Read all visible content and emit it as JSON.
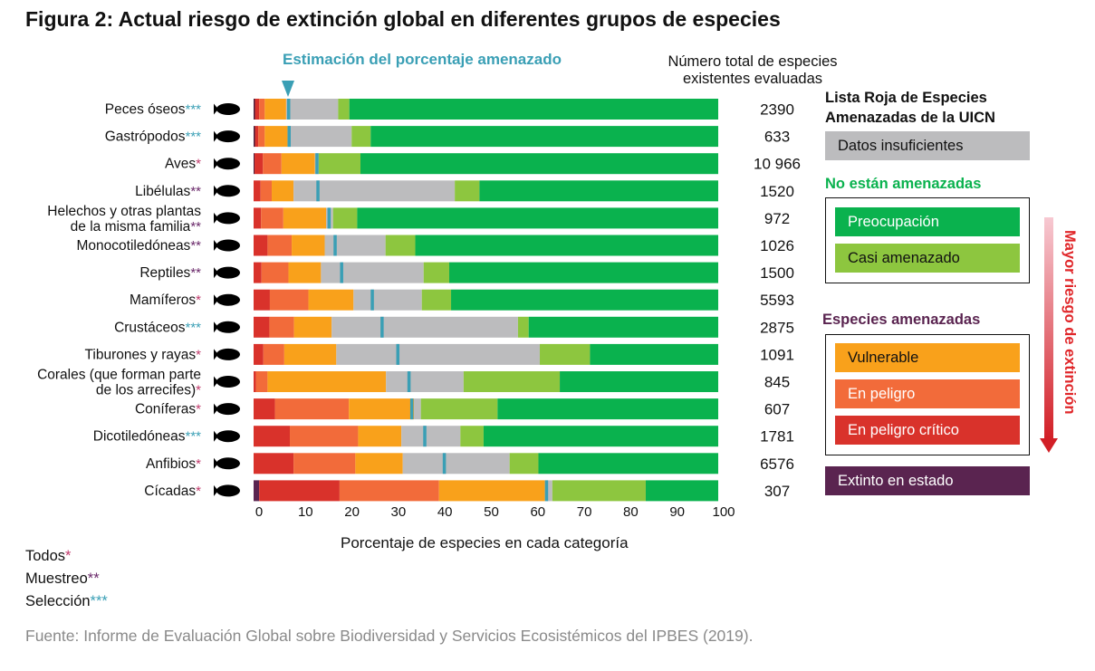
{
  "title": "Figura 2: Actual riesgo de extinción global en diferentes grupos de especies",
  "estimate_label": "Estimación del porcentaje amenazado",
  "total_header": "Número total de especies existentes evaluadas",
  "xlabel": "Porcentaje de especies en cada categoría",
  "notes": [
    {
      "label": "Todos",
      "star": "*"
    },
    {
      "label": "Muestreo",
      "star": "**"
    },
    {
      "label": "Selección",
      "star": "***"
    }
  ],
  "source": "Fuente: Informe de Evaluación Global sobre Biodiversidad y Servicios Ecosistémicos del IPBES (2019).",
  "legend": {
    "title": "Lista Roja de Especies Amenazadas de la UICN",
    "dd": "Datos insuficientes",
    "not_threatened_title": "No están amenazadas",
    "lc": "Preocupación",
    "nt": "Casi amenazado",
    "threatened_title": "Especies amenazadas",
    "vu": "Vulnerable",
    "en": "En peligro",
    "cr": "En peligro crítico",
    "ew": "Extinto en estado",
    "risk": "Mayor riesgo de extinción"
  },
  "colors": {
    "EX": "#4a1e3d",
    "EW": "#5a2450",
    "CR": "#d9322b",
    "EN": "#f26b3a",
    "VU": "#f9a11b",
    "DD": "#bcbcbe",
    "NT": "#8dc63f",
    "LC": "#0ab24e",
    "marker": "#3a9fb5",
    "star_all": "#c0396b",
    "star_sample": "#6b2a6b",
    "star_select": "#3a9fb5"
  },
  "chart_data": {
    "type": "bar",
    "orientation": "horizontal",
    "stacked": true,
    "xlim": [
      0,
      100
    ],
    "xticks": [
      "0",
      "10",
      "20",
      "30",
      "40",
      "50",
      "60",
      "70",
      "80",
      "90",
      "100"
    ],
    "segment_order": [
      "EX",
      "EW",
      "CR",
      "EN",
      "VU",
      "DD",
      "NT",
      "LC"
    ],
    "categories": [
      {
        "label": [
          "Peces óseos"
        ],
        "star": "***",
        "total": "2390",
        "EX": 0.3,
        "EW": 0,
        "CR": 0.9,
        "EN": 1.2,
        "VU": 4.6,
        "DD": 11.2,
        "NT": 2.4,
        "LC": 79.4,
        "estimate": 7.5
      },
      {
        "label": [
          "Gastrópodos"
        ],
        "star": "***",
        "total": "633",
        "EX": 0.3,
        "EW": 0,
        "CR": 0.7,
        "EN": 1.4,
        "VU": 4.9,
        "DD": 13.8,
        "NT": 4.1,
        "LC": 74.8,
        "estimate": 7.6
      },
      {
        "label": [
          "Aves"
        ],
        "star": "*",
        "total": "10 966",
        "EX": 0.2,
        "EW": 0,
        "CR": 1.8,
        "EN": 4.0,
        "VU": 7.2,
        "DD": 0.8,
        "NT": 9.0,
        "LC": 77.0,
        "estimate": 13.6
      },
      {
        "label": [
          "Libélulas"
        ],
        "star": "**",
        "total": "1520",
        "EX": 0,
        "EW": 0,
        "CR": 1.5,
        "EN": 2.4,
        "VU": 4.7,
        "DD": 34.7,
        "NT": 5.3,
        "LC": 51.4,
        "estimate": 13.8
      },
      {
        "label": [
          "Helechos y otras plantas",
          "de la misma familia"
        ],
        "star": "**",
        "total": "972",
        "EX": 0,
        "EW": 0,
        "CR": 1.6,
        "EN": 4.8,
        "VU": 9.2,
        "DD": 1.5,
        "NT": 5.2,
        "LC": 77.7,
        "estimate": 16.2
      },
      {
        "label": [
          "Monocotiledóneas"
        ],
        "star": "**",
        "total": "1026",
        "EX": 0,
        "EW": 0,
        "CR": 3.0,
        "EN": 5.2,
        "VU": 7.1,
        "DD": 13.1,
        "NT": 6.4,
        "LC": 65.2,
        "estimate": 17.5
      },
      {
        "label": [
          "Reptiles"
        ],
        "star": "**",
        "total": "1500",
        "EX": 0,
        "EW": 0,
        "CR": 1.7,
        "EN": 5.8,
        "VU": 7.0,
        "DD": 22.1,
        "NT": 5.5,
        "LC": 57.9,
        "estimate": 18.9
      },
      {
        "label": [
          "Mamíferos"
        ],
        "star": "*",
        "total": "5593",
        "EX": 0,
        "EW": 0,
        "CR": 3.5,
        "EN": 8.3,
        "VU": 9.7,
        "DD": 14.7,
        "NT": 6.3,
        "LC": 57.5,
        "estimate": 25.5
      },
      {
        "label": [
          "Crustáceos"
        ],
        "star": "***",
        "total": "2875",
        "EX": 0,
        "EW": 0,
        "CR": 3.4,
        "EN": 5.3,
        "VU": 8.1,
        "DD": 40.1,
        "NT": 2.3,
        "LC": 40.8,
        "estimate": 27.6
      },
      {
        "label": [
          "Tiburones y rayas"
        ],
        "star": "*",
        "total": "1091",
        "EX": 0,
        "EW": 0,
        "CR": 2.1,
        "EN": 4.5,
        "VU": 11.2,
        "DD": 43.8,
        "NT": 10.8,
        "LC": 27.6,
        "estimate": 31.0
      },
      {
        "label": [
          "Corales (que forman parte",
          "de los arrecifes)"
        ],
        "star": "*",
        "total": "845",
        "EX": 0,
        "EW": 0,
        "CR": 0.5,
        "EN": 2.5,
        "VU": 25.5,
        "DD": 16.7,
        "NT": 20.7,
        "LC": 34.1,
        "estimate": 33.4
      },
      {
        "label": [
          "Coníferas"
        ],
        "star": "*",
        "total": "607",
        "EX": 0,
        "EW": 0,
        "CR": 4.6,
        "EN": 15.9,
        "VU": 14.0,
        "DD": 1.5,
        "NT": 16.5,
        "LC": 47.5,
        "estimate": 34.0
      },
      {
        "label": [
          "Dicotiledóneas"
        ],
        "star": "***",
        "total": "1781",
        "EX": 0,
        "EW": 0,
        "CR": 7.8,
        "EN": 14.7,
        "VU": 9.3,
        "DD": 12.7,
        "NT": 5.0,
        "LC": 50.5,
        "estimate": 36.8
      },
      {
        "label": [
          "Anfibios"
        ],
        "star": "*",
        "total": "6576",
        "EX": 0,
        "EW": 0,
        "CR": 8.6,
        "EN": 13.3,
        "VU": 10.2,
        "DD": 23.0,
        "NT": 6.2,
        "LC": 38.7,
        "estimate": 41.0
      },
      {
        "label": [
          "Cícadas"
        ],
        "star": "*",
        "total": "307",
        "EX": 0,
        "EW": 1.2,
        "CR": 17.3,
        "EN": 21.4,
        "VU": 22.8,
        "DD": 1.6,
        "NT": 20.1,
        "LC": 15.6,
        "estimate": 63.0
      }
    ]
  }
}
